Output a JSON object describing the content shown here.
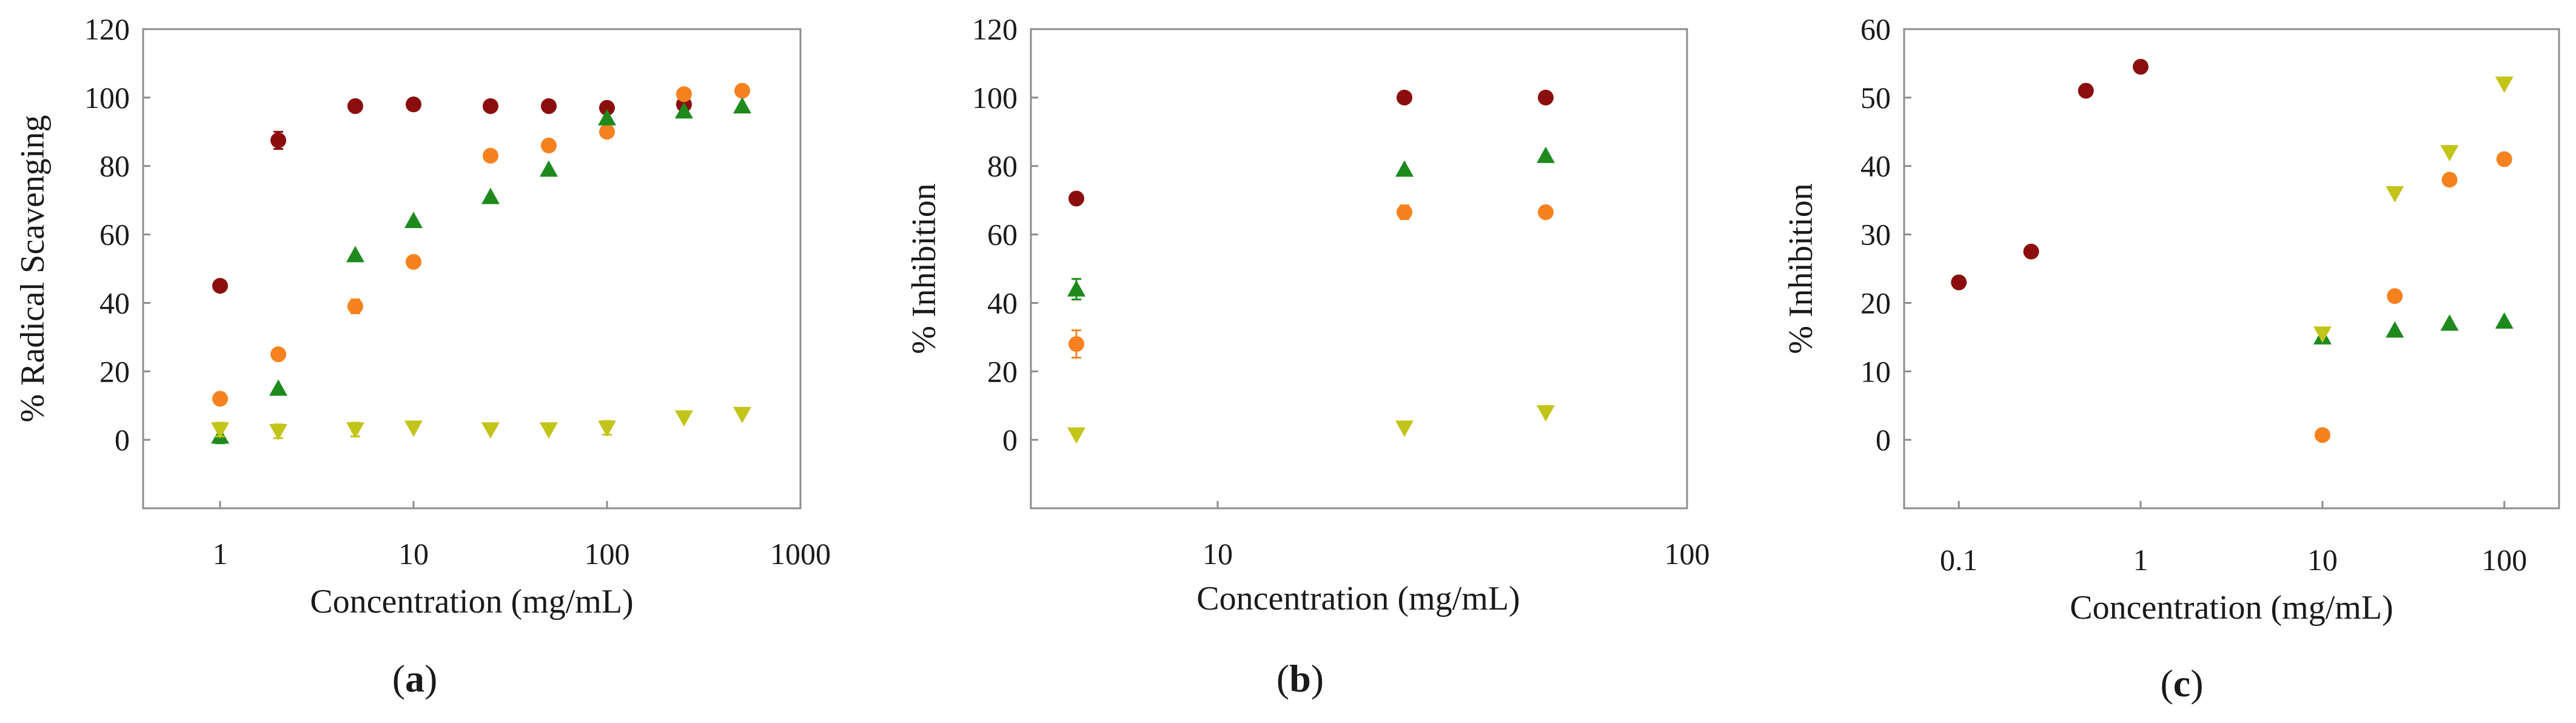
{
  "colors": {
    "dark_red": "#8b0d0d",
    "orange": "#f5821f",
    "green": "#1e8a1e",
    "yellow": "#c3c41a"
  },
  "chart_data": [
    {
      "type": "scatter",
      "panel": "a",
      "xscale": "log",
      "xlim": [
        0.4,
        1000
      ],
      "ylim": [
        -20,
        120
      ],
      "xticks": [
        1,
        10,
        100,
        1000
      ],
      "xtick_labels": [
        "1",
        "10",
        "100",
        "1000"
      ],
      "yticks": [
        0,
        20,
        40,
        60,
        80,
        100,
        120
      ],
      "ytick_labels": [
        "0",
        "20",
        "40",
        "60",
        "80",
        "100",
        "120"
      ],
      "xlabel": "Concentration (mg/mL)",
      "ylabel": "% Radical Scavenging",
      "caption_open": "(",
      "caption_letter": "a",
      "caption_close": ")",
      "series": [
        {
          "color": "dark_red",
          "marker": "circle",
          "x": [
            1,
            2,
            5,
            10,
            25,
            50,
            100,
            250
          ],
          "y": [
            45,
            87.5,
            97.5,
            98,
            97.5,
            97.5,
            97,
            98
          ],
          "err": [
            0,
            2.5,
            0,
            0,
            0,
            0,
            0,
            0
          ]
        },
        {
          "color": "orange",
          "marker": "circle",
          "x": [
            1,
            2,
            5,
            10,
            25,
            50,
            100,
            250,
            500
          ],
          "y": [
            12,
            25,
            39,
            52,
            83,
            86,
            90,
            101,
            102
          ],
          "err": [
            0,
            0,
            2,
            0,
            0,
            0,
            0,
            0,
            0
          ]
        },
        {
          "color": "green",
          "marker": "triangle-up",
          "x": [
            1,
            2,
            5,
            10,
            25,
            50,
            100,
            250,
            500
          ],
          "y": [
            1,
            15,
            54,
            64,
            71,
            79,
            94,
            96,
            97.5
          ],
          "err": [
            2,
            0,
            0,
            0,
            0,
            0,
            0,
            0,
            0
          ]
        },
        {
          "color": "yellow",
          "marker": "triangle-down",
          "x": [
            1,
            2,
            5,
            10,
            25,
            50,
            100,
            250,
            500
          ],
          "y": [
            3,
            2.5,
            3,
            3.5,
            3,
            3,
            3.5,
            6.5,
            7.5
          ],
          "err": [
            2,
            2,
            2,
            0,
            0,
            0,
            2,
            0,
            0
          ]
        }
      ]
    },
    {
      "type": "scatter",
      "panel": "b",
      "xscale": "log",
      "xlim": [
        4,
        100
      ],
      "ylim": [
        -20,
        120
      ],
      "xticks": [
        10,
        100
      ],
      "xtick_labels": [
        "10",
        "100"
      ],
      "yticks": [
        0,
        20,
        40,
        60,
        80,
        100,
        120
      ],
      "ytick_labels": [
        "0",
        "20",
        "40",
        "60",
        "80",
        "100",
        "120"
      ],
      "xlabel": "Concentration (mg/mL)",
      "ylabel": "% Inhibition",
      "caption_open": "(",
      "caption_letter": "b",
      "caption_close": ")",
      "series": [
        {
          "color": "dark_red",
          "marker": "circle",
          "x": [
            5,
            25,
            50
          ],
          "y": [
            70.5,
            100,
            100
          ],
          "err": [
            0,
            0,
            0
          ]
        },
        {
          "color": "orange",
          "marker": "circle",
          "x": [
            5,
            25,
            50
          ],
          "y": [
            28,
            66.5,
            66.5
          ],
          "err": [
            4,
            2,
            0
          ]
        },
        {
          "color": "green",
          "marker": "triangle-up",
          "x": [
            5,
            25,
            50
          ],
          "y": [
            44,
            79,
            83
          ],
          "err": [
            3,
            0,
            0
          ]
        },
        {
          "color": "yellow",
          "marker": "triangle-down",
          "x": [
            5,
            25,
            50
          ],
          "y": [
            1.5,
            3.5,
            8
          ],
          "err": [
            0,
            0,
            0
          ]
        }
      ]
    },
    {
      "type": "scatter",
      "panel": "c",
      "xscale": "log",
      "xlim": [
        0.05,
        200
      ],
      "ylim": [
        -10,
        60
      ],
      "xticks": [
        0.1,
        1,
        10,
        100
      ],
      "xtick_labels": [
        "0.1",
        "1",
        "10",
        "100"
      ],
      "yticks": [
        0,
        10,
        20,
        30,
        40,
        50,
        60
      ],
      "ytick_labels": [
        "0",
        "10",
        "20",
        "30",
        "40",
        "50",
        "60"
      ],
      "xlabel": "Concentration (mg/mL)",
      "ylabel": "% Inhibition",
      "caption_open": "(",
      "caption_letter": "c",
      "caption_close": ")",
      "series": [
        {
          "color": "dark_red",
          "marker": "circle",
          "x": [
            0.1,
            0.25,
            0.5,
            1
          ],
          "y": [
            23,
            27.5,
            51,
            54.5
          ],
          "err": [
            0,
            0,
            0,
            0
          ]
        },
        {
          "color": "orange",
          "marker": "circle",
          "x": [
            10,
            25,
            50,
            100
          ],
          "y": [
            0.7,
            21,
            38,
            41
          ],
          "err": [
            0,
            0,
            0,
            0
          ]
        },
        {
          "color": "green",
          "marker": "triangle-up",
          "x": [
            10,
            25,
            50,
            100
          ],
          "y": [
            15,
            16,
            17,
            17.3
          ],
          "err": [
            0,
            0,
            0,
            0
          ]
        },
        {
          "color": "yellow",
          "marker": "triangle-down",
          "x": [
            10,
            25,
            50,
            100
          ],
          "y": [
            15.5,
            36,
            42,
            52
          ],
          "err": [
            0,
            0,
            0,
            0
          ]
        }
      ]
    }
  ]
}
